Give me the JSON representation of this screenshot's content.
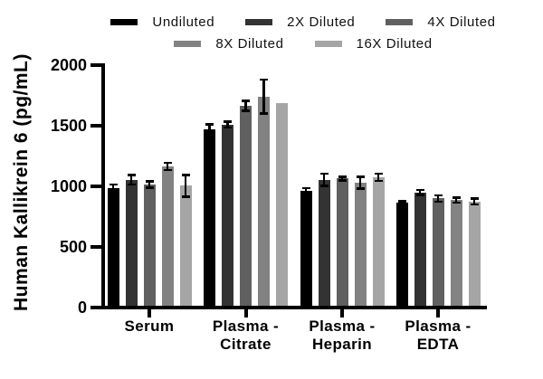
{
  "chart_data": {
    "type": "bar",
    "title": "",
    "xlabel": "",
    "ylabel": "Human Kallikrein 6 (pg/mL)",
    "ylim": [
      0,
      2000
    ],
    "yticks": [
      0,
      500,
      1000,
      1500,
      2000
    ],
    "grid": false,
    "legend_position": "top",
    "categories": [
      "Serum",
      "Plasma -\nCitrate",
      "Plasma -\nHeparin",
      "Plasma -\nEDTA"
    ],
    "series": [
      {
        "name": "Undiluted",
        "color": "#000000",
        "values": [
          970,
          1455,
          950,
          850
        ],
        "errors": [
          30,
          40,
          20,
          12
        ]
      },
      {
        "name": "2X Diluted",
        "color": "#333333",
        "values": [
          1040,
          1495,
          1040,
          935
        ],
        "errors": [
          40,
          25,
          50,
          20
        ]
      },
      {
        "name": "4X Diluted",
        "color": "#606060",
        "values": [
          1000,
          1650,
          1050,
          885
        ],
        "errors": [
          25,
          40,
          15,
          25
        ]
      },
      {
        "name": "8X Diluted",
        "color": "#828282",
        "values": [
          1150,
          1725,
          1015,
          870
        ],
        "errors": [
          30,
          140,
          50,
          20
        ]
      },
      {
        "name": "16X Diluted",
        "color": "#a5a5a5",
        "values": [
          990,
          1670,
          1060,
          860
        ],
        "errors": [
          90,
          0,
          30,
          25
        ]
      }
    ]
  }
}
